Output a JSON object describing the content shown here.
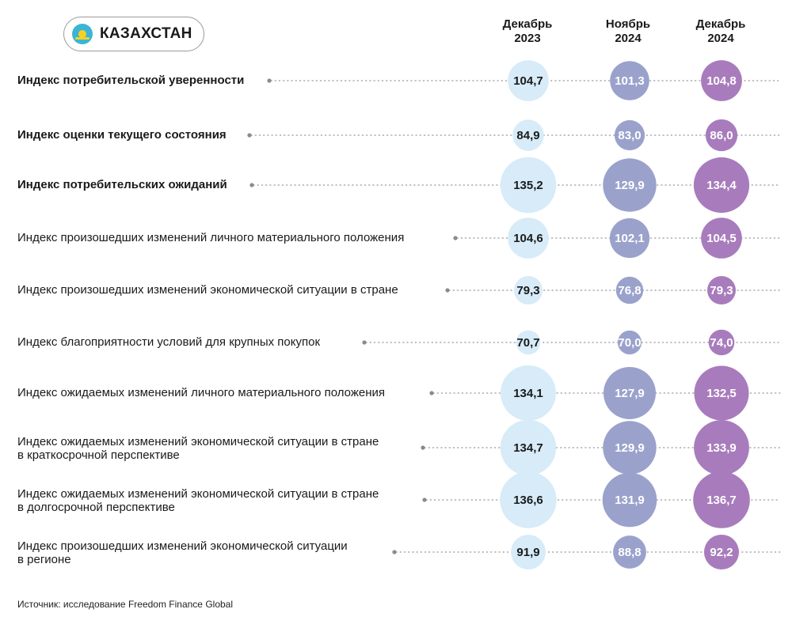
{
  "header": {
    "country": "КАЗАХСТАН",
    "flag_icon": "kazakhstan-flag-icon",
    "columns": [
      {
        "line1": "Декабрь",
        "line2": "2023"
      },
      {
        "line1": "Ноябрь",
        "line2": "2024"
      },
      {
        "line1": "Декабрь",
        "line2": "2024"
      }
    ]
  },
  "colors": {
    "dec_2023": "#d7ebf8",
    "nov_2024": "#9aa2cc",
    "dec_2024": "#a87cbc",
    "dots": "#9a9a9a"
  },
  "chart_data": {
    "type": "table",
    "periods": [
      "Декабрь 2023",
      "Ноябрь 2024",
      "Декабрь 2024"
    ],
    "rows": [
      {
        "label": [
          "Индекс потребительской уверенности"
        ],
        "bold": true,
        "values": [
          104.7,
          101.3,
          104.8
        ],
        "labels": [
          "104,7",
          "101,3",
          "104,8"
        ]
      },
      {
        "label": [
          "Индекс оценки текущего состояния"
        ],
        "bold": true,
        "values": [
          84.9,
          83.0,
          86.0
        ],
        "labels": [
          "84,9",
          "83,0",
          "86,0"
        ]
      },
      {
        "label": [
          "Индекс потребительских ожиданий"
        ],
        "bold": true,
        "values": [
          135.2,
          129.9,
          134.4
        ],
        "labels": [
          "135,2",
          "129,9",
          "134,4"
        ]
      },
      {
        "label": [
          "Индекс произошедших изменений личного материального положения"
        ],
        "bold": false,
        "values": [
          104.6,
          102.1,
          104.5
        ],
        "labels": [
          "104,6",
          "102,1",
          "104,5"
        ]
      },
      {
        "label": [
          "Индекс произошедших изменений экономической ситуации в стране"
        ],
        "bold": false,
        "values": [
          79.3,
          76.8,
          79.3
        ],
        "labels": [
          "79,3",
          "76,8",
          "79,3"
        ]
      },
      {
        "label": [
          "Индекс благоприятности условий для крупных покупок"
        ],
        "bold": false,
        "values": [
          70.7,
          70.0,
          74.0
        ],
        "labels": [
          "70,7",
          "70,0",
          "74,0"
        ]
      },
      {
        "label": [
          "Индекс ожидаемых изменений личного материального положения"
        ],
        "bold": false,
        "values": [
          134.1,
          127.9,
          132.5
        ],
        "labels": [
          "134,1",
          "127,9",
          "132,5"
        ]
      },
      {
        "label": [
          "Индекс ожидаемых изменений экономической ситуации в стране",
          "в краткосрочной перспективе"
        ],
        "bold": false,
        "values": [
          134.7,
          129.9,
          133.9
        ],
        "labels": [
          "134,7",
          "129,9",
          "133,9"
        ]
      },
      {
        "label": [
          "Индекс ожидаемых изменений экономической ситуации в стране",
          "в долгосрочной перспективе"
        ],
        "bold": false,
        "values": [
          136.6,
          131.9,
          136.7
        ],
        "labels": [
          "136,6",
          "131,9",
          "136,7"
        ]
      },
      {
        "label": [
          "Индекс произошедших изменений экономической ситуации",
          "в регионе"
        ],
        "bold": false,
        "values": [
          91.9,
          88.8,
          92.2
        ],
        "labels": [
          "91,9",
          "88,8",
          "92,2"
        ]
      }
    ]
  },
  "source": "Источник: исследование Freedom Finance Global"
}
